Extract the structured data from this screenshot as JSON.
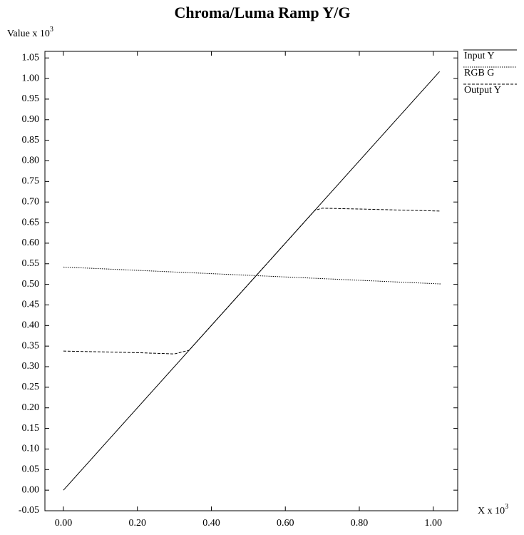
{
  "chart_data": {
    "type": "line",
    "title": "Chroma/Luma Ramp Y/G",
    "y_label": "Value x 10",
    "y_label_exponent": "3",
    "x_label": "X x 10",
    "x_label_exponent": "3",
    "xlim": [
      -0.05,
      1.066
    ],
    "ylim": [
      -0.05,
      1.066
    ],
    "xticks": [
      {
        "value": 0,
        "label": "0.00"
      },
      {
        "value": 0.2,
        "label": "0.20"
      },
      {
        "value": 0.4,
        "label": "0.40"
      },
      {
        "value": 0.6,
        "label": "0.60"
      },
      {
        "value": 0.8,
        "label": "0.80"
      },
      {
        "value": 1,
        "label": "1.00"
      }
    ],
    "yticks": [
      {
        "value": -0.05,
        "label": "-0.05"
      },
      {
        "value": 0,
        "label": "0.00"
      },
      {
        "value": 0.05,
        "label": "0.05"
      },
      {
        "value": 0.1,
        "label": "0.10"
      },
      {
        "value": 0.15,
        "label": "0.15"
      },
      {
        "value": 0.2,
        "label": "0.20"
      },
      {
        "value": 0.25,
        "label": "0.25"
      },
      {
        "value": 0.3,
        "label": "0.30"
      },
      {
        "value": 0.35,
        "label": "0.35"
      },
      {
        "value": 0.4,
        "label": "0.40"
      },
      {
        "value": 0.45,
        "label": "0.45"
      },
      {
        "value": 0.5,
        "label": "0.50"
      },
      {
        "value": 0.55,
        "label": "0.55"
      },
      {
        "value": 0.6,
        "label": "0.60"
      },
      {
        "value": 0.65,
        "label": "0.65"
      },
      {
        "value": 0.7,
        "label": "0.70"
      },
      {
        "value": 0.75,
        "label": "0.75"
      },
      {
        "value": 0.8,
        "label": "0.80"
      },
      {
        "value": 0.85,
        "label": "0.85"
      },
      {
        "value": 0.9,
        "label": "0.90"
      },
      {
        "value": 0.95,
        "label": "0.95"
      },
      {
        "value": 1,
        "label": "1.00"
      },
      {
        "value": 1.05,
        "label": "1.05"
      }
    ],
    "grid": false,
    "legend": "outside-top-right",
    "series": [
      {
        "name": "Input Y",
        "color": "#000000",
        "style": "solid",
        "x": [
          0,
          1.017
        ],
        "values": [
          0,
          1.017
        ]
      },
      {
        "name": "RGB G",
        "color": "#000000",
        "style": "dotted",
        "x": [
          0,
          0.5,
          1.02
        ],
        "values": [
          0.542,
          0.522,
          0.501
        ]
      },
      {
        "name": "Output Y",
        "color": "#000000",
        "style": "dashed",
        "x": [
          0,
          0.2,
          0.3,
          0.34,
          0.68,
          0.7,
          0.8,
          1.02
        ],
        "values": [
          0.338,
          0.334,
          0.331,
          0.34,
          0.68,
          0.685,
          0.683,
          0.678
        ]
      }
    ]
  }
}
